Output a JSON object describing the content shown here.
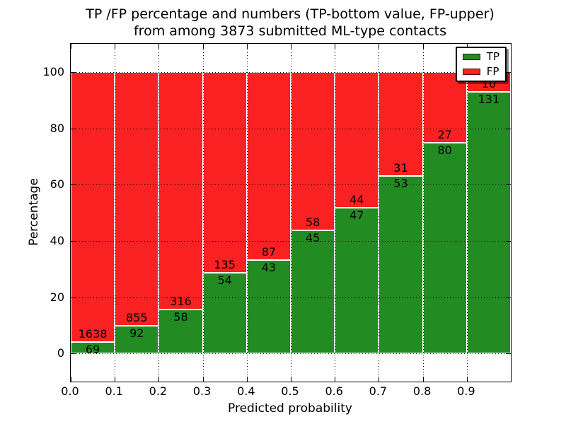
{
  "figure": {
    "title_line1": "TP /FP percentage and numbers (TP-bottom value, FP-upper)",
    "title_line2": "from among 3873 submitted ML-type contacts"
  },
  "axes": {
    "xlabel": "Predicted probability",
    "ylabel": "Percentage",
    "xtick_labels": [
      "0.0",
      "0.1",
      "0.2",
      "0.3",
      "0.4",
      "0.5",
      "0.6",
      "0.7",
      "0.8",
      "0.9"
    ],
    "ytick_labels": [
      "0",
      "20",
      "40",
      "60",
      "80",
      "100"
    ]
  },
  "legend": {
    "items": [
      {
        "label": "TP",
        "color": "#228b22"
      },
      {
        "label": "FP",
        "color": "#f92121"
      }
    ]
  },
  "chart_data": {
    "type": "bar",
    "stacked": true,
    "normalization": "each 0.1-wide probability bin is scaled to 100%; numeric labels are raw counts (TP bottom value, FP upper)",
    "title": "TP /FP percentage and numbers (TP-bottom value, FP-upper) from among 3873 submitted ML-type contacts",
    "xlabel": "Predicted probability",
    "ylabel": "Percentage",
    "bin_starts": [
      0.0,
      0.1,
      0.2,
      0.3,
      0.4,
      0.5,
      0.6,
      0.7,
      0.8,
      0.9
    ],
    "bin_width": 0.1,
    "series": [
      {
        "name": "TP",
        "color": "#228b22",
        "counts": [
          69,
          92,
          58,
          54,
          43,
          45,
          47,
          53,
          80,
          131
        ]
      },
      {
        "name": "FP",
        "color": "#f92121",
        "counts": [
          1638,
          855,
          316,
          135,
          87,
          58,
          44,
          31,
          27,
          10
        ]
      }
    ],
    "tp_percent_of_bin": [
      4.0,
      9.7,
      15.5,
      28.6,
      33.1,
      43.7,
      51.6,
      63.1,
      74.8,
      92.9
    ],
    "total_contacts": 3873,
    "xlim": [
      0,
      1
    ],
    "ylim": [
      -10,
      110
    ],
    "xticks": [
      0,
      0.1,
      0.2,
      0.3,
      0.4,
      0.5,
      0.6,
      0.7,
      0.8,
      0.9
    ],
    "yticks": [
      0,
      20,
      40,
      60,
      80,
      100
    ],
    "grid": "dotted",
    "legend_position": "upper right"
  }
}
